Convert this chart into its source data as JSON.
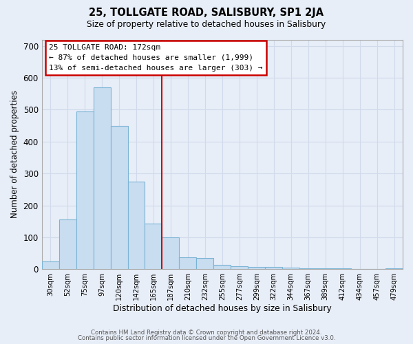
{
  "title": "25, TOLLGATE ROAD, SALISBURY, SP1 2JA",
  "subtitle": "Size of property relative to detached houses in Salisbury",
  "xlabel": "Distribution of detached houses by size in Salisbury",
  "ylabel": "Number of detached properties",
  "bar_labels": [
    "30sqm",
    "52sqm",
    "75sqm",
    "97sqm",
    "120sqm",
    "142sqm",
    "165sqm",
    "187sqm",
    "210sqm",
    "232sqm",
    "255sqm",
    "277sqm",
    "299sqm",
    "322sqm",
    "344sqm",
    "367sqm",
    "389sqm",
    "412sqm",
    "434sqm",
    "457sqm",
    "479sqm"
  ],
  "bar_values": [
    25,
    155,
    495,
    570,
    450,
    275,
    143,
    100,
    37,
    35,
    13,
    10,
    8,
    6,
    4,
    3,
    2,
    2,
    1,
    1,
    3
  ],
  "bar_color": "#c9ddf0",
  "bar_edge_color": "#7ab4d4",
  "vline_idx": 7,
  "vline_color": "#cc0000",
  "annotation_text_line1": "25 TOLLGATE ROAD: 172sqm",
  "annotation_text_line2": "← 87% of detached houses are smaller (1,999)",
  "annotation_text_line3": "13% of semi-detached houses are larger (303) →",
  "annotation_box_edge_color": "#cc0000",
  "ylim": [
    0,
    720
  ],
  "yticks": [
    0,
    100,
    200,
    300,
    400,
    500,
    600,
    700
  ],
  "grid_color": "#d0daea",
  "background_color": "#e8eef8",
  "plot_bg_color": "#e8eef8",
  "footer_line1": "Contains HM Land Registry data © Crown copyright and database right 2024.",
  "footer_line2": "Contains public sector information licensed under the Open Government Licence v3.0."
}
